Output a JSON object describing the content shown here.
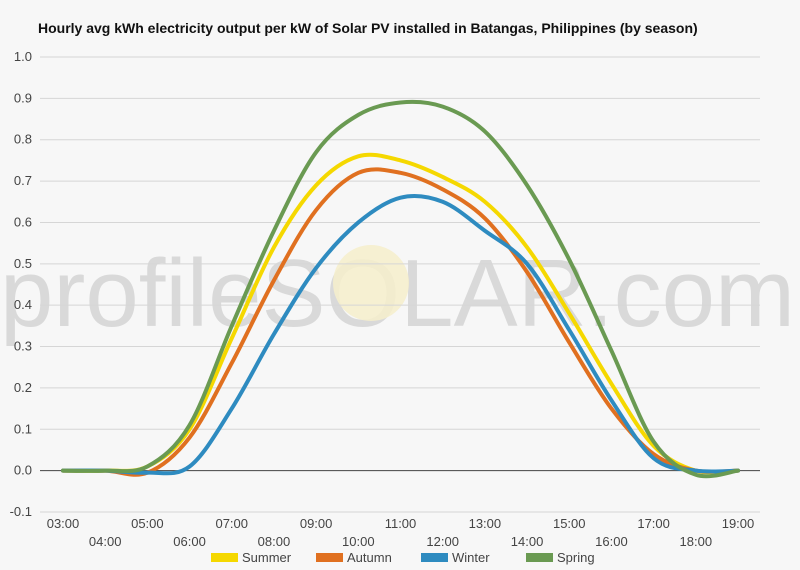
{
  "chart_data": {
    "type": "line",
    "title": "Hourly avg kWh electricity output per kW of Solar PV installed in Batangas, Philippines (by season)",
    "watermark": "profileSOLAR.com",
    "x": [
      "03:00",
      "04:00",
      "05:00",
      "06:00",
      "07:00",
      "08:00",
      "09:00",
      "10:00",
      "11:00",
      "12:00",
      "13:00",
      "14:00",
      "15:00",
      "16:00",
      "17:00",
      "18:00",
      "19:00"
    ],
    "ylim": [
      -0.1,
      1.0
    ],
    "yticks": [
      "1.0",
      "0.9",
      "0.8",
      "0.7",
      "0.6",
      "0.5",
      "0.4",
      "0.3",
      "0.2",
      "0.1",
      "0.0",
      "-0.1"
    ],
    "grid": true,
    "legend_position": "bottom",
    "series": [
      {
        "name": "Summer",
        "color": "#f5d800",
        "values": [
          0,
          0,
          0.01,
          0.1,
          0.32,
          0.54,
          0.69,
          0.76,
          0.75,
          0.71,
          0.65,
          0.54,
          0.38,
          0.21,
          0.06,
          0,
          0
        ]
      },
      {
        "name": "Autumn",
        "color": "#e07020",
        "values": [
          0,
          0,
          -0.005,
          0.08,
          0.26,
          0.46,
          0.63,
          0.72,
          0.72,
          0.68,
          0.61,
          0.48,
          0.31,
          0.15,
          0.04,
          0,
          0
        ]
      },
      {
        "name": "Winter",
        "color": "#2e8bc0",
        "values": [
          0,
          0,
          -0.005,
          0.01,
          0.15,
          0.33,
          0.49,
          0.6,
          0.66,
          0.65,
          0.58,
          0.5,
          0.34,
          0.17,
          0.03,
          0,
          0
        ]
      },
      {
        "name": "Spring",
        "color": "#6a9a52",
        "values": [
          0,
          0,
          0.01,
          0.11,
          0.35,
          0.58,
          0.77,
          0.86,
          0.89,
          0.88,
          0.82,
          0.69,
          0.51,
          0.29,
          0.07,
          -0.01,
          0
        ]
      }
    ]
  }
}
